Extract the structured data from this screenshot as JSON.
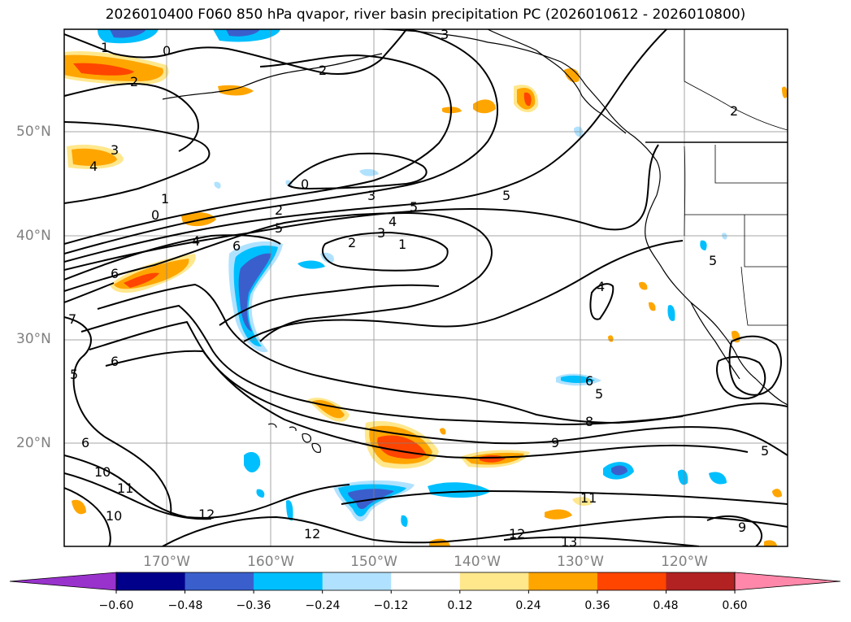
{
  "title": "2026010400 F060 850 hPa qvapor, river basin precipitation PC (2026010612 - 2026010800)",
  "lat_labels": [
    "50°N",
    "40°N",
    "30°N",
    "20°N"
  ],
  "lon_labels": [
    "170°W",
    "160°W",
    "150°W",
    "140°W",
    "130°W",
    "120°W"
  ],
  "colorbar": {
    "ticks": [
      "−0.60",
      "−0.48",
      "−0.36",
      "−0.24",
      "−0.12",
      "0.12",
      "0.24",
      "0.36",
      "0.48",
      "0.60"
    ],
    "colors": [
      "#9932cc",
      "#00008b",
      "#3a5fcd",
      "#00bfff",
      "#b0e2ff",
      "#ffffff",
      "#ffe78c",
      "#ffa500",
      "#ff4500",
      "#b22222",
      "#ff88aa"
    ]
  },
  "contour_labels": [
    "0",
    "1",
    "2",
    "3",
    "4",
    "5",
    "6",
    "7",
    "8",
    "9",
    "10",
    "11",
    "12",
    "13"
  ],
  "colors": {
    "contour": "#000000",
    "grid": "#808080",
    "coast": "#000000"
  }
}
